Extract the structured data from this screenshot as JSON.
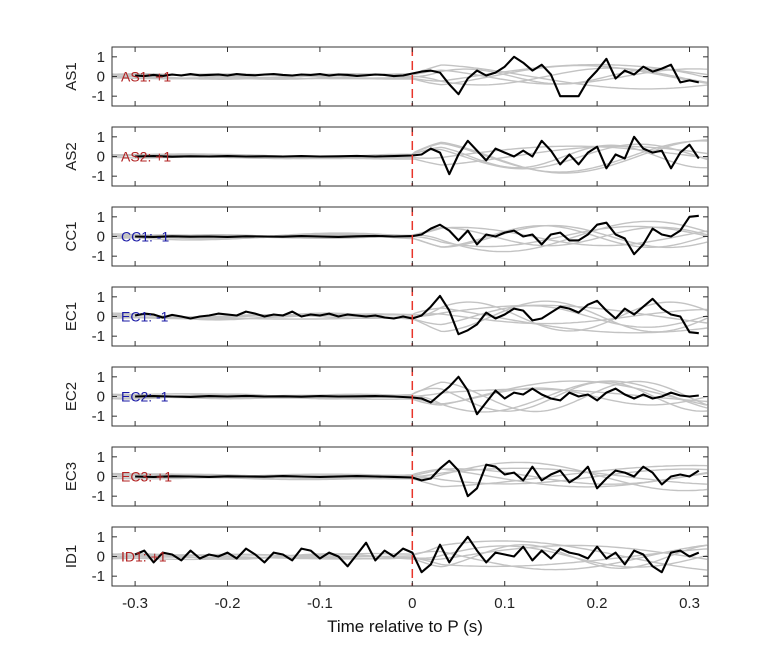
{
  "figure": {
    "xlabel": "Time relative to P (s)"
  },
  "chart_data": {
    "type": "line",
    "xlabel": "Time relative to P (s)",
    "xlim": [
      -0.325,
      0.32
    ],
    "xticks": [
      -0.3,
      -0.2,
      -0.1,
      0,
      0.1,
      0.2,
      0.3
    ],
    "xtick_labels": [
      "-0.3",
      "-0.2",
      "-0.1",
      "0",
      "0.1",
      "0.2",
      "0.3"
    ],
    "ylim": [
      -1.5,
      1.5
    ],
    "yticks": [
      1,
      0,
      -1
    ],
    "ytick_labels": [
      "1",
      "0",
      "-1"
    ],
    "p_marker": {
      "x": 0,
      "color": "#e8352b",
      "style": "dashed"
    },
    "series_colors": {
      "main": "#000000",
      "background": "#c3c3c3"
    },
    "panels": [
      {
        "ylabel": "AS1",
        "annotation": "AS1: +1",
        "annotation_color": "#b22222",
        "x": [
          -0.3,
          -0.29,
          -0.28,
          -0.27,
          -0.26,
          -0.25,
          -0.24,
          -0.23,
          -0.22,
          -0.21,
          -0.2,
          -0.19,
          -0.18,
          -0.17,
          -0.16,
          -0.15,
          -0.14,
          -0.13,
          -0.12,
          -0.11,
          -0.1,
          -0.09,
          -0.08,
          -0.07,
          -0.06,
          -0.05,
          -0.04,
          -0.03,
          -0.02,
          -0.01,
          0.0,
          0.01,
          0.02,
          0.03,
          0.04,
          0.05,
          0.06,
          0.07,
          0.08,
          0.09,
          0.1,
          0.11,
          0.12,
          0.13,
          0.14,
          0.15,
          0.16,
          0.17,
          0.18,
          0.19,
          0.2,
          0.21,
          0.22,
          0.23,
          0.24,
          0.25,
          0.26,
          0.27,
          0.28,
          0.29,
          0.3,
          0.31
        ],
        "y": [
          0.05,
          0.02,
          0.08,
          0.03,
          0.1,
          0.05,
          0.12,
          0.06,
          0.08,
          0.1,
          0.05,
          0.12,
          0.08,
          0.06,
          0.1,
          0.12,
          0.08,
          0.05,
          0.1,
          0.08,
          0.12,
          0.05,
          0.1,
          0.08,
          0.03,
          0.06,
          0.1,
          0.08,
          0.02,
          0.05,
          0.15,
          0.25,
          0.3,
          0.2,
          -0.4,
          -0.9,
          -0.1,
          0.3,
          0.05,
          0.2,
          0.5,
          1.0,
          0.7,
          0.3,
          0.6,
          0.1,
          -1.0,
          -1.0,
          -1.0,
          -0.2,
          0.3,
          0.9,
          -0.1,
          0.3,
          0.1,
          0.5,
          0.25,
          0.4,
          0.6,
          -0.3,
          -0.2,
          -0.3
        ]
      },
      {
        "ylabel": "AS2",
        "annotation": "AS2: +1",
        "annotation_color": "#b22222",
        "x": [
          -0.3,
          -0.28,
          -0.26,
          -0.24,
          -0.22,
          -0.2,
          -0.18,
          -0.16,
          -0.14,
          -0.12,
          -0.1,
          -0.08,
          -0.06,
          -0.04,
          -0.02,
          0.0,
          0.01,
          0.02,
          0.03,
          0.04,
          0.05,
          0.06,
          0.07,
          0.08,
          0.09,
          0.1,
          0.11,
          0.12,
          0.13,
          0.14,
          0.15,
          0.16,
          0.17,
          0.18,
          0.19,
          0.2,
          0.21,
          0.22,
          0.23,
          0.24,
          0.25,
          0.26,
          0.27,
          0.28,
          0.29,
          0.3,
          0.31
        ],
        "y": [
          0.0,
          0.02,
          -0.01,
          0.01,
          0.0,
          0.02,
          0.0,
          0.01,
          0.0,
          0.02,
          0.0,
          0.01,
          0.03,
          0.0,
          0.02,
          0.05,
          0.1,
          0.4,
          0.2,
          -0.9,
          0.1,
          0.8,
          0.3,
          -0.2,
          0.4,
          0.2,
          0.0,
          0.3,
          0.0,
          0.8,
          0.3,
          -0.4,
          0.1,
          -0.4,
          0.2,
          0.5,
          -0.6,
          0.1,
          -0.1,
          1.0,
          0.4,
          0.2,
          0.3,
          -0.6,
          0.2,
          0.6,
          -0.1
        ]
      },
      {
        "ylabel": "CC1",
        "annotation": "CC1: -1",
        "annotation_color": "#1a1aa6",
        "x": [
          -0.3,
          -0.28,
          -0.26,
          -0.24,
          -0.22,
          -0.2,
          -0.18,
          -0.16,
          -0.14,
          -0.12,
          -0.1,
          -0.08,
          -0.06,
          -0.04,
          -0.02,
          0.0,
          0.01,
          0.02,
          0.03,
          0.04,
          0.05,
          0.06,
          0.07,
          0.08,
          0.09,
          0.1,
          0.11,
          0.12,
          0.13,
          0.14,
          0.15,
          0.16,
          0.17,
          0.18,
          0.19,
          0.2,
          0.21,
          0.22,
          0.23,
          0.24,
          0.25,
          0.26,
          0.27,
          0.28,
          0.29,
          0.3,
          0.31
        ],
        "y": [
          0.0,
          -0.02,
          0.01,
          -0.01,
          0.0,
          -0.02,
          0.01,
          0.0,
          -0.01,
          0.02,
          0.0,
          -0.02,
          0.01,
          0.03,
          0.0,
          0.02,
          0.1,
          0.4,
          0.6,
          0.3,
          -0.2,
          0.3,
          -0.4,
          0.1,
          0.0,
          0.2,
          0.3,
          0.0,
          0.1,
          -0.4,
          0.1,
          0.2,
          -0.2,
          -0.2,
          0.1,
          0.6,
          0.7,
          0.1,
          -0.1,
          -0.9,
          -0.4,
          0.4,
          0.1,
          0.0,
          0.3,
          1.0,
          1.05
        ]
      },
      {
        "ylabel": "EC1",
        "annotation": "EC1: -1",
        "annotation_color": "#1a1aa6",
        "x": [
          -0.3,
          -0.29,
          -0.28,
          -0.27,
          -0.26,
          -0.25,
          -0.24,
          -0.23,
          -0.22,
          -0.21,
          -0.2,
          -0.19,
          -0.18,
          -0.17,
          -0.16,
          -0.15,
          -0.14,
          -0.13,
          -0.12,
          -0.11,
          -0.1,
          -0.09,
          -0.08,
          -0.07,
          -0.06,
          -0.05,
          -0.04,
          -0.03,
          -0.02,
          -0.01,
          0.0,
          0.01,
          0.02,
          0.03,
          0.04,
          0.05,
          0.06,
          0.07,
          0.08,
          0.09,
          0.1,
          0.11,
          0.12,
          0.13,
          0.14,
          0.15,
          0.16,
          0.17,
          0.18,
          0.19,
          0.2,
          0.21,
          0.22,
          0.23,
          0.24,
          0.25,
          0.26,
          0.27,
          0.28,
          0.29,
          0.3,
          0.31
        ],
        "y": [
          0.05,
          0.15,
          0.1,
          -0.05,
          0.08,
          0.0,
          -0.1,
          0.0,
          0.05,
          0.15,
          0.1,
          0.05,
          0.25,
          0.15,
          0.0,
          0.1,
          0.05,
          0.25,
          0.0,
          0.1,
          0.05,
          0.15,
          0.0,
          0.1,
          0.05,
          0.0,
          0.05,
          -0.05,
          -0.1,
          0.0,
          -0.1,
          0.05,
          0.5,
          1.05,
          0.3,
          -0.9,
          -0.7,
          -0.4,
          0.2,
          -0.1,
          0.1,
          0.4,
          0.3,
          -0.2,
          -0.1,
          0.2,
          0.5,
          0.4,
          0.2,
          0.6,
          0.8,
          0.3,
          -0.1,
          0.4,
          0.1,
          0.5,
          0.9,
          0.4,
          0.1,
          0.0,
          -0.8,
          -0.85
        ]
      },
      {
        "ylabel": "EC2",
        "annotation": "EC2: -1",
        "annotation_color": "#1a1aa6",
        "x": [
          -0.3,
          -0.28,
          -0.26,
          -0.24,
          -0.22,
          -0.2,
          -0.18,
          -0.16,
          -0.14,
          -0.12,
          -0.1,
          -0.08,
          -0.06,
          -0.04,
          -0.02,
          0.0,
          0.01,
          0.02,
          0.03,
          0.04,
          0.05,
          0.06,
          0.07,
          0.08,
          0.09,
          0.1,
          0.11,
          0.12,
          0.13,
          0.14,
          0.15,
          0.16,
          0.17,
          0.18,
          0.19,
          0.2,
          0.21,
          0.22,
          0.23,
          0.24,
          0.25,
          0.26,
          0.27,
          0.28,
          0.29,
          0.3,
          0.31
        ],
        "y": [
          0.0,
          0.02,
          0.0,
          -0.02,
          0.02,
          0.0,
          0.03,
          0.0,
          0.01,
          -0.01,
          0.02,
          0.0,
          0.01,
          0.02,
          0.0,
          -0.05,
          -0.1,
          -0.3,
          0.1,
          0.5,
          1.0,
          0.3,
          -0.9,
          -0.3,
          0.3,
          -0.1,
          0.2,
          0.1,
          0.4,
          0.1,
          -0.1,
          -0.2,
          0.2,
          0.0,
          0.1,
          -0.2,
          0.2,
          0.4,
          0.1,
          -0.1,
          0.1,
          -0.1,
          0.0,
          0.2,
          0.05,
          0.0,
          0.05
        ]
      },
      {
        "ylabel": "EC3",
        "annotation": "EC3: +1",
        "annotation_color": "#b22222",
        "x": [
          -0.3,
          -0.28,
          -0.26,
          -0.24,
          -0.22,
          -0.2,
          -0.18,
          -0.16,
          -0.14,
          -0.12,
          -0.1,
          -0.08,
          -0.06,
          -0.04,
          -0.02,
          0.0,
          0.01,
          0.02,
          0.03,
          0.04,
          0.05,
          0.06,
          0.07,
          0.08,
          0.09,
          0.1,
          0.11,
          0.12,
          0.13,
          0.14,
          0.15,
          0.16,
          0.17,
          0.18,
          0.19,
          0.2,
          0.21,
          0.22,
          0.23,
          0.24,
          0.25,
          0.26,
          0.27,
          0.28,
          0.29,
          0.3,
          0.31
        ],
        "y": [
          0.0,
          -0.02,
          0.01,
          0.0,
          -0.02,
          0.01,
          0.0,
          -0.01,
          0.02,
          0.0,
          -0.02,
          0.0,
          0.02,
          0.0,
          -0.02,
          -0.05,
          -0.2,
          -0.1,
          0.4,
          0.8,
          0.3,
          -1.0,
          -0.6,
          0.6,
          0.5,
          0.1,
          0.2,
          -0.2,
          0.5,
          -0.2,
          0.1,
          0.3,
          -0.3,
          0.0,
          0.5,
          -0.6,
          -0.1,
          0.3,
          0.2,
          0.0,
          0.5,
          0.2,
          -0.4,
          0.0,
          0.1,
          0.0,
          0.3
        ]
      },
      {
        "ylabel": "ID1",
        "annotation": "ID1: +1",
        "annotation_color": "#b22222",
        "x": [
          -0.3,
          -0.29,
          -0.28,
          -0.27,
          -0.26,
          -0.25,
          -0.24,
          -0.23,
          -0.22,
          -0.21,
          -0.2,
          -0.19,
          -0.18,
          -0.17,
          -0.16,
          -0.15,
          -0.14,
          -0.13,
          -0.12,
          -0.11,
          -0.1,
          -0.09,
          -0.08,
          -0.07,
          -0.06,
          -0.05,
          -0.04,
          -0.03,
          -0.02,
          -0.01,
          0.0,
          0.01,
          0.02,
          0.03,
          0.04,
          0.05,
          0.06,
          0.07,
          0.08,
          0.09,
          0.1,
          0.11,
          0.12,
          0.13,
          0.14,
          0.15,
          0.16,
          0.17,
          0.18,
          0.19,
          0.2,
          0.21,
          0.22,
          0.23,
          0.24,
          0.25,
          0.26,
          0.27,
          0.28,
          0.29,
          0.3,
          0.31
        ],
        "y": [
          0.1,
          0.3,
          -0.3,
          0.2,
          0.1,
          -0.2,
          0.3,
          -0.1,
          0.1,
          0.0,
          0.2,
          -0.1,
          0.4,
          0.1,
          -0.3,
          0.2,
          0.1,
          -0.2,
          0.4,
          0.3,
          -0.1,
          0.2,
          0.0,
          -0.5,
          0.1,
          0.7,
          -0.2,
          0.3,
          0.0,
          0.4,
          0.2,
          -0.8,
          -0.4,
          0.6,
          -0.3,
          0.4,
          1.0,
          0.3,
          -0.3,
          0.2,
          0.1,
          0.0,
          0.5,
          -0.2,
          0.3,
          -0.1,
          0.4,
          0.2,
          0.1,
          -0.1,
          0.5,
          -0.1,
          0.2,
          -0.4,
          0.3,
          0.1,
          -0.5,
          -0.8,
          0.2,
          0.3,
          0.0,
          0.2
        ]
      }
    ]
  }
}
